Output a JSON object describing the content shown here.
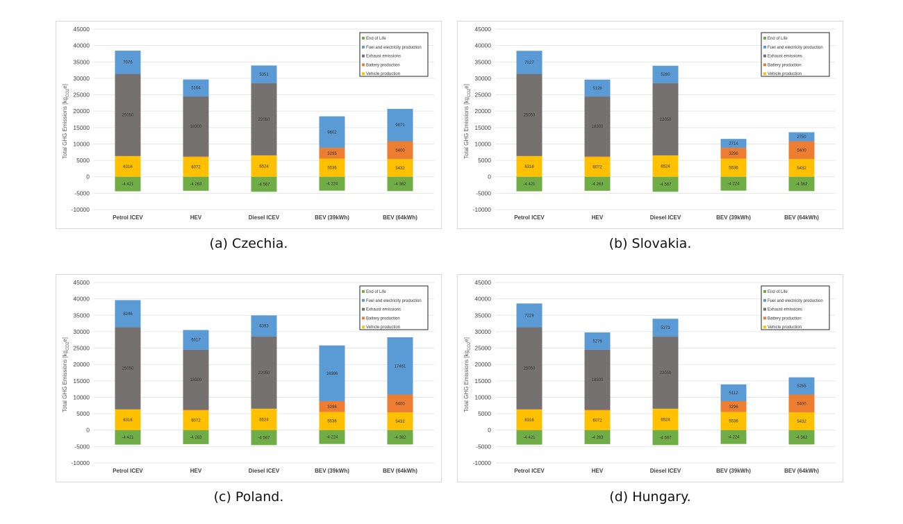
{
  "colors": {
    "end_of_life": "#70ad47",
    "fuel": "#5b9bd5",
    "exhaust": "#767171",
    "battery": "#ed7d31",
    "vehicle": "#ffc000"
  },
  "chart_data": [
    {
      "type": "bar",
      "stacked": true,
      "caption": "(a) Czechia.",
      "ylabel": "Total GHG Emissions [kgCO2e]",
      "ylabel_main": "Total GHG Emissions [kg",
      "ylabel_sub": "CO2",
      "ylabel_end": "e]",
      "ylim": [
        -10000,
        45000
      ],
      "yticks": [
        -10000,
        -5000,
        0,
        5000,
        10000,
        15000,
        20000,
        25000,
        30000,
        35000,
        40000,
        45000
      ],
      "grid": true,
      "legend_position": "top-right",
      "categories": [
        "Petrol ICEV",
        "HEV",
        "Diesel ICEV",
        "BEV (39kWh)",
        "BEV (64kWh)"
      ],
      "series": [
        {
          "key": "vehicle",
          "name": "Vehicle production",
          "values": [
            6316,
            6072,
            6524,
            5536,
            5432
          ]
        },
        {
          "key": "battery",
          "name": "Battery production",
          "values": [
            0,
            125,
            0,
            3296,
            5400
          ]
        },
        {
          "key": "exhaust",
          "name": "Exhaust emissions",
          "values": [
            25050,
            18300,
            22050,
            0,
            0
          ]
        },
        {
          "key": "fuel",
          "name": "Fuel and electricity production",
          "values": [
            7076,
            5164,
            5351,
            9602,
            9871
          ]
        },
        {
          "key": "end_of_life",
          "name": "End of Life",
          "values": [
            -4421,
            -4263,
            -4567,
            -4224,
            -4362
          ]
        }
      ]
    },
    {
      "type": "bar",
      "stacked": true,
      "caption": "(b) Slovakia.",
      "ylabel": "Total GHG Emissions [kgCO2e]",
      "ylabel_main": "Total GHG Emissions [kg",
      "ylabel_sub": "CO2",
      "ylabel_end": "e]",
      "ylim": [
        -10000,
        45000
      ],
      "yticks": [
        -10000,
        -5000,
        0,
        5000,
        10000,
        15000,
        20000,
        25000,
        30000,
        35000,
        40000,
        45000
      ],
      "grid": true,
      "legend_position": "top-right",
      "categories": [
        "Petrol ICEV",
        "HEV",
        "Diesel ICEV",
        "BEV (39kWh)",
        "BEV (64kWh)"
      ],
      "series": [
        {
          "key": "vehicle",
          "name": "Vehicle production",
          "values": [
            6316,
            6072,
            6524,
            5536,
            5432
          ]
        },
        {
          "key": "battery",
          "name": "Battery production",
          "values": [
            0,
            125,
            0,
            3296,
            5400
          ]
        },
        {
          "key": "exhaust",
          "name": "Exhaust emissions",
          "values": [
            25050,
            18300,
            22050,
            0,
            0
          ]
        },
        {
          "key": "fuel",
          "name": "Fuel and electricity production",
          "values": [
            7027,
            5128,
            5280,
            2714,
            2750
          ]
        },
        {
          "key": "end_of_life",
          "name": "End of Life",
          "values": [
            -4421,
            -4263,
            -4567,
            -4224,
            -4362
          ]
        }
      ]
    },
    {
      "type": "bar",
      "stacked": true,
      "caption": "(c) Poland.",
      "ylabel": "Total GHG Emissions [kgCO2e]",
      "ylabel_main": "Total GHG Emissions [kg",
      "ylabel_sub": "CO2",
      "ylabel_end": "e]",
      "ylim": [
        -10000,
        45000
      ],
      "yticks": [
        -10000,
        -5000,
        0,
        5000,
        10000,
        15000,
        20000,
        25000,
        30000,
        35000,
        40000,
        45000
      ],
      "grid": true,
      "legend_position": "top-right",
      "categories": [
        "Petrol ICEV",
        "HEV",
        "Diesel ICEV",
        "BEV (39kWh)",
        "BEV (64kWh)"
      ],
      "series": [
        {
          "key": "vehicle",
          "name": "Vehicle production",
          "values": [
            6316,
            6072,
            6524,
            5536,
            5432
          ]
        },
        {
          "key": "battery",
          "name": "Battery production",
          "values": [
            0,
            125,
            0,
            3296,
            5400
          ]
        },
        {
          "key": "exhaust",
          "name": "Exhaust emissions",
          "values": [
            25050,
            18300,
            22050,
            0,
            0
          ]
        },
        {
          "key": "fuel",
          "name": "Fuel and electricity production",
          "values": [
            8246,
            6017,
            6393,
            16986,
            17461
          ]
        },
        {
          "key": "end_of_life",
          "name": "End of Life",
          "values": [
            -4421,
            -4263,
            -4567,
            -4224,
            -4362
          ]
        }
      ]
    },
    {
      "type": "bar",
      "stacked": true,
      "caption": "(d) Hungary.",
      "ylabel": "Total GHG Emissions [kgCO2e]",
      "ylabel_main": "Total GHG Emissions [kg",
      "ylabel_sub": "CO2",
      "ylabel_end": "e]",
      "ylim": [
        -10000,
        45000
      ],
      "yticks": [
        -10000,
        -5000,
        0,
        5000,
        10000,
        15000,
        20000,
        25000,
        30000,
        35000,
        40000,
        45000
      ],
      "grid": true,
      "legend_position": "top-right",
      "categories": [
        "Petrol ICEV",
        "HEV",
        "Diesel ICEV",
        "BEV (39kWh)",
        "BEV (64kWh)"
      ],
      "series": [
        {
          "key": "vehicle",
          "name": "Vehicle production",
          "values": [
            6316,
            6072,
            6524,
            5536,
            5432
          ]
        },
        {
          "key": "battery",
          "name": "Battery production",
          "values": [
            0,
            125,
            0,
            3296,
            5400
          ]
        },
        {
          "key": "exhaust",
          "name": "Exhaust emissions",
          "values": [
            25050,
            18300,
            22050,
            0,
            0
          ]
        },
        {
          "key": "fuel",
          "name": "Fuel and electricity production",
          "values": [
            7229,
            5276,
            5373,
            5112,
            5255
          ]
        },
        {
          "key": "end_of_life",
          "name": "End of Life",
          "values": [
            -4421,
            -4263,
            -4567,
            -4224,
            -4362
          ]
        }
      ]
    }
  ]
}
